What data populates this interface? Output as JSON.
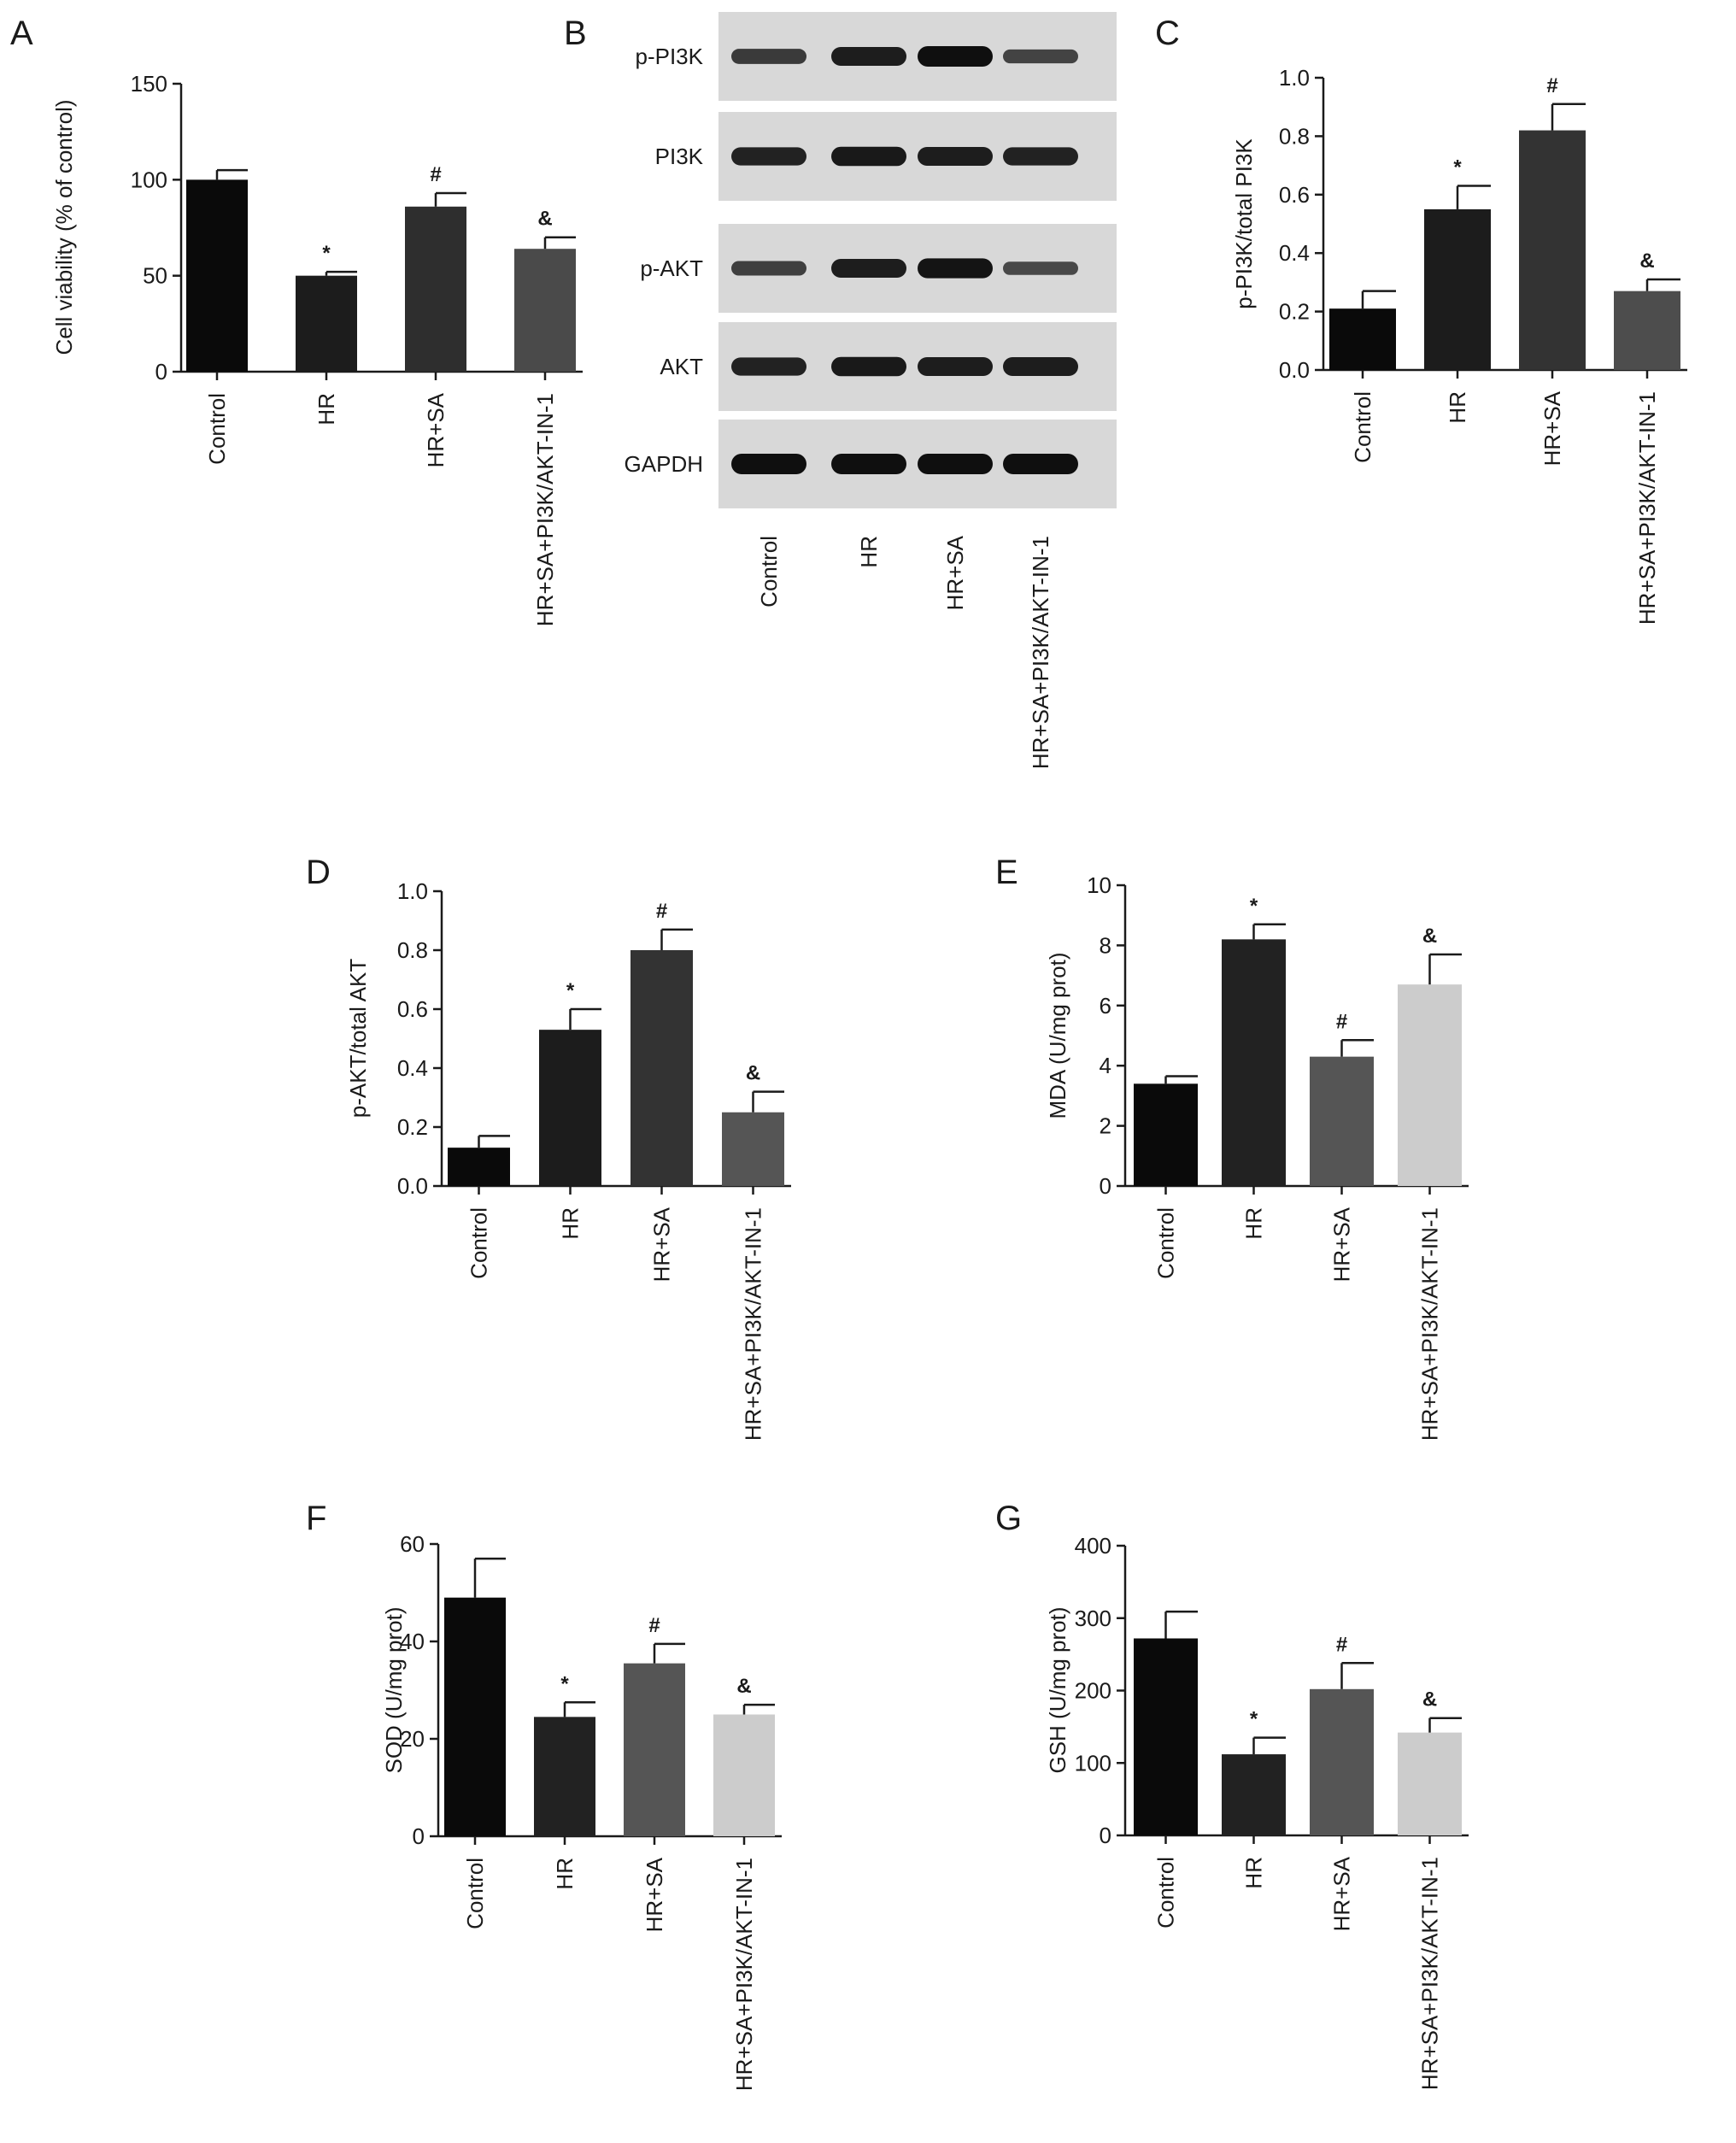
{
  "panels": {
    "A": {
      "letter": "A",
      "chart_data": {
        "type": "bar",
        "categories": [
          "Control",
          "HR",
          "HR+SA",
          "HR+SA+PI3K/AKT-IN-1"
        ],
        "values": [
          100,
          50,
          86,
          64
        ],
        "errors": [
          5,
          2,
          7,
          6
        ],
        "significance": [
          "",
          "*",
          "#",
          "&"
        ],
        "colors": [
          "#0a0a0a",
          "#1c1c1c",
          "#2e2e2e",
          "#4a4a4a"
        ],
        "ylabel": "Cell viability (% of control)",
        "ylim": [
          0,
          150
        ],
        "yticks": [
          0,
          50,
          100,
          150
        ]
      }
    },
    "B": {
      "letter": "B",
      "blot": {
        "rows": [
          "p-PI3K",
          "PI3K",
          "p-AKT",
          "AKT",
          "GAPDH"
        ],
        "lanes": [
          "Control",
          "HR",
          "HR+SA",
          "HR+SA+PI3K/AKT-IN-1"
        ],
        "intensity": [
          [
            0.55,
            0.85,
            1.0,
            0.45
          ],
          [
            0.8,
            0.9,
            0.85,
            0.8
          ],
          [
            0.5,
            0.85,
            0.95,
            0.4
          ],
          [
            0.8,
            0.9,
            0.85,
            0.85
          ],
          [
            1.0,
            1.0,
            1.0,
            1.0
          ]
        ]
      }
    },
    "C": {
      "letter": "C",
      "chart_data": {
        "type": "bar",
        "categories": [
          "Control",
          "HR",
          "HR+SA",
          "HR+SA+PI3K/AKT-IN-1"
        ],
        "values": [
          0.21,
          0.55,
          0.82,
          0.27
        ],
        "errors": [
          0.06,
          0.08,
          0.09,
          0.04
        ],
        "significance": [
          "",
          "*",
          "#",
          "&"
        ],
        "colors": [
          "#0a0a0a",
          "#1c1c1c",
          "#333333",
          "#4d4d4d"
        ],
        "ylabel": "p-PI3K/total PI3K",
        "ylim": [
          0,
          1.0
        ],
        "yticks": [
          0.0,
          0.2,
          0.4,
          0.6,
          0.8,
          1.0
        ],
        "tick_labels": [
          "0.0",
          "0.2",
          "0.4",
          "0.6",
          "0.8",
          "1.0"
        ]
      }
    },
    "D": {
      "letter": "D",
      "chart_data": {
        "type": "bar",
        "categories": [
          "Control",
          "HR",
          "HR+SA",
          "HR+SA+PI3K/AKT-IN-1"
        ],
        "values": [
          0.13,
          0.53,
          0.8,
          0.25
        ],
        "errors": [
          0.04,
          0.07,
          0.07,
          0.07
        ],
        "significance": [
          "",
          "*",
          "#",
          "&"
        ],
        "colors": [
          "#0a0a0a",
          "#1c1c1c",
          "#333333",
          "#555555"
        ],
        "ylabel": "p-AKT/total AKT",
        "ylim": [
          0,
          1.0
        ],
        "yticks": [
          0.0,
          0.2,
          0.4,
          0.6,
          0.8,
          1.0
        ],
        "tick_labels": [
          "0.0",
          "0.2",
          "0.4",
          "0.6",
          "0.8",
          "1.0"
        ]
      }
    },
    "E": {
      "letter": "E",
      "chart_data": {
        "type": "bar",
        "categories": [
          "Control",
          "HR",
          "HR+SA",
          "HR+SA+PI3K/AKT-IN-1"
        ],
        "values": [
          3.4,
          8.2,
          4.3,
          6.7
        ],
        "errors": [
          0.25,
          0.5,
          0.55,
          1.0
        ],
        "significance": [
          "",
          "*",
          "#",
          "&"
        ],
        "colors": [
          "#0a0a0a",
          "#222222",
          "#555555",
          "#cccccc"
        ],
        "ylabel": "MDA (U/mg prot)",
        "ylim": [
          0,
          10
        ],
        "yticks": [
          0,
          2,
          4,
          6,
          8,
          10
        ]
      }
    },
    "F": {
      "letter": "F",
      "chart_data": {
        "type": "bar",
        "categories": [
          "Control",
          "HR",
          "HR+SA",
          "HR+SA+PI3K/AKT-IN-1"
        ],
        "values": [
          49,
          24.5,
          35.5,
          25
        ],
        "errors": [
          8,
          3,
          4,
          2
        ],
        "significance": [
          "",
          "*",
          "#",
          "&"
        ],
        "colors": [
          "#0a0a0a",
          "#222222",
          "#555555",
          "#cccccc"
        ],
        "ylabel": "SOD (U/mg prot)",
        "ylim": [
          0,
          60
        ],
        "yticks": [
          0,
          20,
          40,
          60
        ]
      }
    },
    "G": {
      "letter": "G",
      "chart_data": {
        "type": "bar",
        "categories": [
          "Control",
          "HR",
          "HR+SA",
          "HR+SA+PI3K/AKT-IN-1"
        ],
        "values": [
          272,
          112,
          202,
          142
        ],
        "errors": [
          37,
          23,
          36,
          20
        ],
        "significance": [
          "",
          "*",
          "#",
          "&"
        ],
        "colors": [
          "#0a0a0a",
          "#222222",
          "#555555",
          "#cccccc"
        ],
        "ylabel": "GSH (U/mg prot)",
        "ylim": [
          0,
          400
        ],
        "yticks": [
          0,
          100,
          200,
          300,
          400
        ]
      }
    }
  }
}
